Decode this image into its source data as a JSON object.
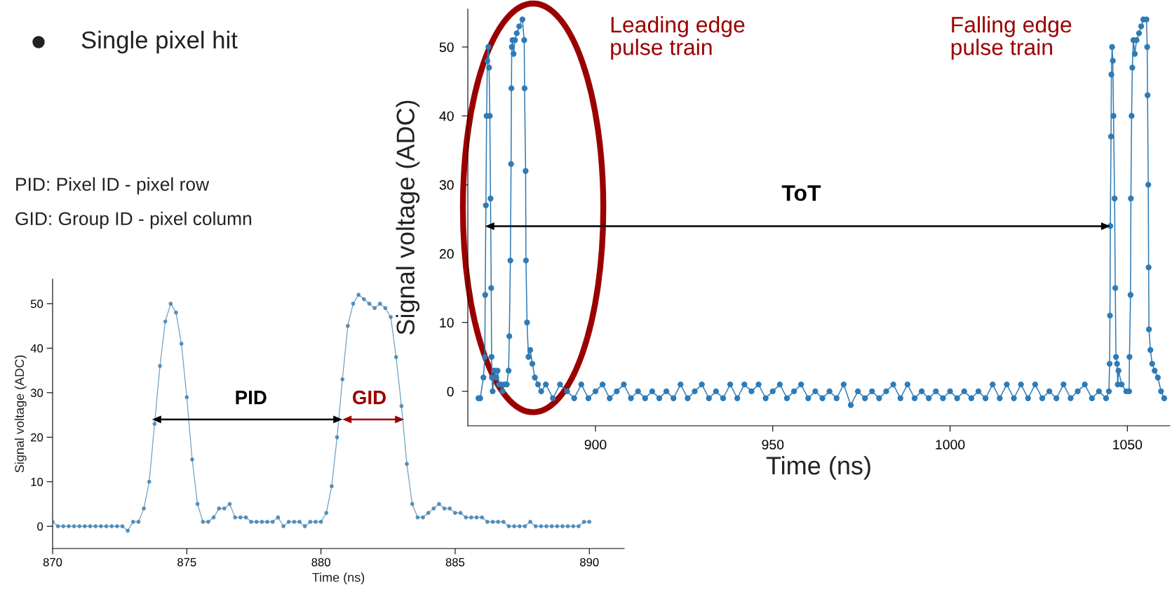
{
  "chart_data": [
    {
      "type": "line",
      "xlabel": "Time (ns)",
      "ylabel": "Signal voltage (ADC)",
      "marker": "circle",
      "xlim": [
        870,
        891.3
      ],
      "ylim": [
        -5,
        55.5
      ],
      "xticks": [
        870,
        875,
        880,
        885,
        890
      ],
      "yticks": [
        0,
        10,
        20,
        30,
        40,
        50
      ],
      "x": [
        870.0,
        870.2,
        870.4,
        870.6,
        870.8,
        871.0,
        871.2,
        871.4,
        871.6,
        871.8,
        872.0,
        872.2,
        872.4,
        872.6,
        872.8,
        873.0,
        873.2,
        873.4,
        873.6,
        873.8,
        874.0,
        874.2,
        874.4,
        874.6,
        874.8,
        875.0,
        875.2,
        875.4,
        875.6,
        875.8,
        876.0,
        876.2,
        876.4,
        876.6,
        876.8,
        877.0,
        877.2,
        877.4,
        877.6,
        877.8,
        878.0,
        878.2,
        878.4,
        878.6,
        878.8,
        879.0,
        879.2,
        879.4,
        879.6,
        879.8,
        880.0,
        880.2,
        880.4,
        880.6,
        880.8,
        881.0,
        881.2,
        881.4,
        881.6,
        881.8,
        882.0,
        882.2,
        882.4,
        882.6,
        882.8,
        883.0,
        883.2,
        883.4,
        883.6,
        883.8,
        884.0,
        884.2,
        884.4,
        884.6,
        884.8,
        885.0,
        885.2,
        885.4,
        885.6,
        885.8,
        886.0,
        886.2,
        886.4,
        886.6,
        886.8,
        887.0,
        887.2,
        887.4,
        887.6,
        887.8,
        888.0,
        888.2,
        888.4,
        888.6,
        888.8,
        889.0,
        889.2,
        889.4,
        889.6,
        889.8,
        890.0
      ],
      "series": [
        {
          "color": "#3f7fad",
          "values": [
            1,
            0,
            0,
            0,
            0,
            0,
            0,
            0,
            0,
            0,
            0,
            0,
            0,
            0,
            -1,
            1,
            1,
            4,
            10,
            23,
            36,
            46,
            50,
            48,
            41,
            29,
            15,
            5,
            1,
            1,
            2,
            4,
            4,
            5,
            2,
            2,
            2,
            1,
            1,
            1,
            1,
            1,
            2,
            0,
            1,
            1,
            1,
            0,
            1,
            1,
            1,
            3,
            9,
            20,
            33,
            45,
            50,
            52,
            51,
            50,
            49,
            50,
            49,
            47,
            38,
            27,
            14,
            5,
            2,
            2,
            3,
            4,
            5,
            4,
            4,
            3,
            3,
            2,
            2,
            2,
            2,
            1,
            1,
            1,
            1,
            0,
            0,
            0,
            0,
            1,
            0,
            0,
            0,
            0,
            0,
            0,
            0,
            0,
            0,
            1,
            1
          ]
        }
      ],
      "annotations": [
        "Single pixel hit",
        "PID: Pixel ID - pixel row",
        "GID: Group ID - pixel column",
        "PID",
        "GID"
      ]
    },
    {
      "type": "line",
      "xlabel": "Time (ns)",
      "ylabel": "Signal voltage (ADC)",
      "marker": "circle",
      "xlim": [
        864,
        1062
      ],
      "ylim": [
        -5,
        55.5
      ],
      "xticks": [
        900,
        950,
        1000,
        1050
      ],
      "yticks": [
        0,
        10,
        20,
        30,
        40,
        50
      ],
      "x": [
        867.0,
        867.5,
        868.4,
        868.8,
        868.9,
        869.1,
        869.3,
        869.5,
        869.8,
        870.0,
        870.2,
        870.4,
        870.6,
        870.7,
        870.8,
        871.0,
        871.5,
        872.0,
        872.4,
        872.8,
        873.3,
        873.8,
        874.3,
        875.0,
        875.5,
        875.7,
        876.0,
        876.2,
        876.3,
        876.4,
        876.6,
        876.9,
        877.3,
        877.8,
        878.5,
        879.4,
        879.9,
        880.0,
        880.3,
        880.4,
        880.7,
        881.1,
        881.6,
        882.2,
        882.9,
        883.8,
        884.7,
        886,
        888,
        890,
        892,
        894,
        896,
        898,
        900,
        902,
        904,
        906,
        908,
        910,
        912,
        914,
        916,
        918,
        920,
        922,
        924,
        926,
        928,
        930,
        932,
        934,
        936,
        938,
        940,
        942,
        944,
        946,
        948,
        950,
        952,
        954,
        956,
        958,
        960,
        962,
        964,
        966,
        968,
        970,
        972,
        974,
        976,
        978,
        980,
        982,
        984,
        986,
        988,
        990,
        992,
        994,
        996,
        998,
        1000,
        1002,
        1004,
        1006,
        1008,
        1010,
        1012,
        1014,
        1016,
        1018,
        1020,
        1022,
        1024,
        1026,
        1028,
        1030,
        1032,
        1034,
        1036,
        1038,
        1040,
        1042,
        1044,
        1044.8,
        1045.0,
        1045.1,
        1045.2,
        1045.4,
        1045.5,
        1045.7,
        1045.9,
        1046.1,
        1046.4,
        1046.6,
        1046.8,
        1047.1,
        1047.3,
        1047.5,
        1048.4,
        1049.7,
        1050.5,
        1050.6,
        1050.9,
        1051.0,
        1051.2,
        1051.4,
        1051.7,
        1052.1,
        1052.6,
        1053.3,
        1053.9,
        1054.5,
        1055.4,
        1055.6,
        1055.7,
        1055.9,
        1056.0,
        1056.1,
        1056.5,
        1057.0,
        1057.7,
        1058.6,
        1059.5,
        1060.4
      ],
      "series": [
        {
          "color": "#2f7bb6",
          "values": [
            -1,
            -1,
            2,
            5,
            14,
            27,
            40,
            48,
            50,
            47,
            40,
            28,
            15,
            5,
            2,
            0,
            3,
            2,
            3,
            1,
            1,
            0,
            1,
            1,
            3,
            8,
            19,
            33,
            44,
            50,
            51,
            49,
            51,
            52,
            53,
            54,
            51,
            44,
            32,
            19,
            10,
            5,
            6,
            4,
            2,
            1,
            0,
            1,
            -1,
            1,
            0,
            -1,
            1,
            -1,
            0,
            1,
            -1,
            0,
            1,
            -1,
            0,
            -1,
            0,
            -1,
            0,
            -1,
            1,
            -1,
            0,
            1,
            -1,
            0,
            -1,
            1,
            -1,
            1,
            0,
            1,
            -1,
            0,
            1,
            -1,
            0,
            1,
            -1,
            0,
            -1,
            0,
            -1,
            1,
            -2,
            0,
            -1,
            0,
            -1,
            0,
            1,
            -1,
            1,
            -1,
            0,
            -1,
            0,
            -1,
            0,
            -1,
            0,
            -1,
            0,
            -1,
            1,
            -1,
            1,
            -1,
            1,
            -1,
            1,
            -1,
            0,
            -1,
            1,
            -1,
            0,
            1,
            -1,
            0,
            -1,
            0,
            4,
            11,
            24,
            37,
            46,
            50,
            48,
            40,
            28,
            15,
            5,
            4,
            1,
            3,
            1,
            0,
            0,
            5,
            14,
            28,
            40,
            47,
            51,
            49,
            51,
            52,
            53,
            54,
            54,
            50,
            43,
            30,
            18,
            9,
            6,
            4,
            3,
            2,
            0,
            -1
          ]
        }
      ],
      "annotations": [
        "ToT",
        "Leading edge\npulse train",
        "Falling edge\npulse train"
      ]
    }
  ]
}
